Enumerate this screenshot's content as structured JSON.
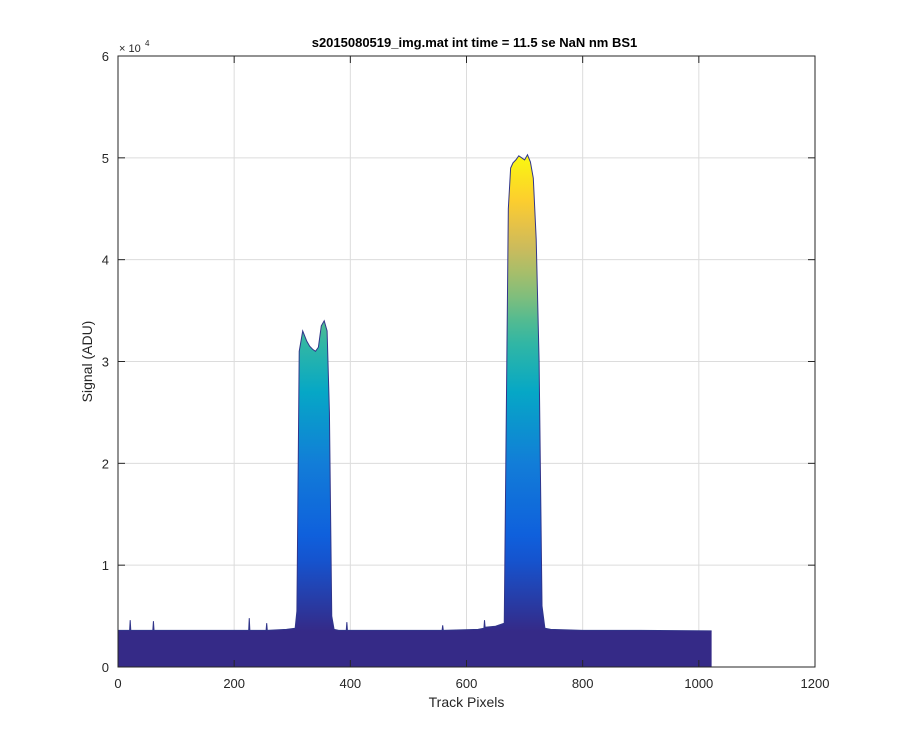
{
  "chart_data": {
    "type": "area",
    "title": "s2015080519_img.mat int time = 11.5 se   NaN nm BS1",
    "xlabel": "Track Pixels",
    "ylabel": "Signal (ADU)",
    "xlim": [
      0,
      1200
    ],
    "ylim": [
      0,
      60000
    ],
    "x_ticks": [
      0,
      200,
      400,
      600,
      800,
      1000,
      1200
    ],
    "y_ticks": [
      0,
      10000,
      20000,
      30000,
      40000,
      50000,
      60000
    ],
    "x_tick_labels": [
      "0",
      "200",
      "400",
      "600",
      "800",
      "1000",
      "1200"
    ],
    "y_tick_labels": [
      "0",
      "1",
      "2",
      "3",
      "4",
      "5",
      "6"
    ],
    "y_exponent_label": "× 10",
    "y_exponent_power": "4",
    "grid": true,
    "colormap": "parula (color by signal value)",
    "series": [
      {
        "x": [
          0,
          20,
          21,
          22,
          60,
          61,
          62,
          225,
          226,
          227,
          255,
          256,
          257,
          290,
          305,
          308,
          312,
          318,
          325,
          330,
          335,
          340,
          345,
          350,
          355,
          360,
          364,
          368,
          372,
          380,
          393,
          394,
          395,
          450,
          558,
          559,
          560,
          620,
          630,
          631,
          632,
          650,
          665,
          672,
          676,
          680,
          685,
          690,
          695,
          700,
          705,
          710,
          715,
          720,
          725,
          730,
          735,
          745,
          800,
          900,
          1022
        ],
        "y": [
          3600,
          3600,
          4600,
          3600,
          3600,
          4500,
          3600,
          3600,
          4800,
          3600,
          3600,
          4300,
          3600,
          3700,
          3800,
          5500,
          31000,
          33000,
          32000,
          31500,
          31200,
          31000,
          31400,
          33500,
          34000,
          33000,
          25000,
          5000,
          3700,
          3600,
          3600,
          4400,
          3600,
          3600,
          3600,
          4100,
          3600,
          3700,
          3800,
          4600,
          3900,
          4000,
          4300,
          45000,
          49000,
          49500,
          49800,
          50200,
          50000,
          49800,
          50300,
          49600,
          48000,
          42000,
          30000,
          6000,
          3800,
          3700,
          3600,
          3600,
          3550
        ]
      }
    ]
  }
}
